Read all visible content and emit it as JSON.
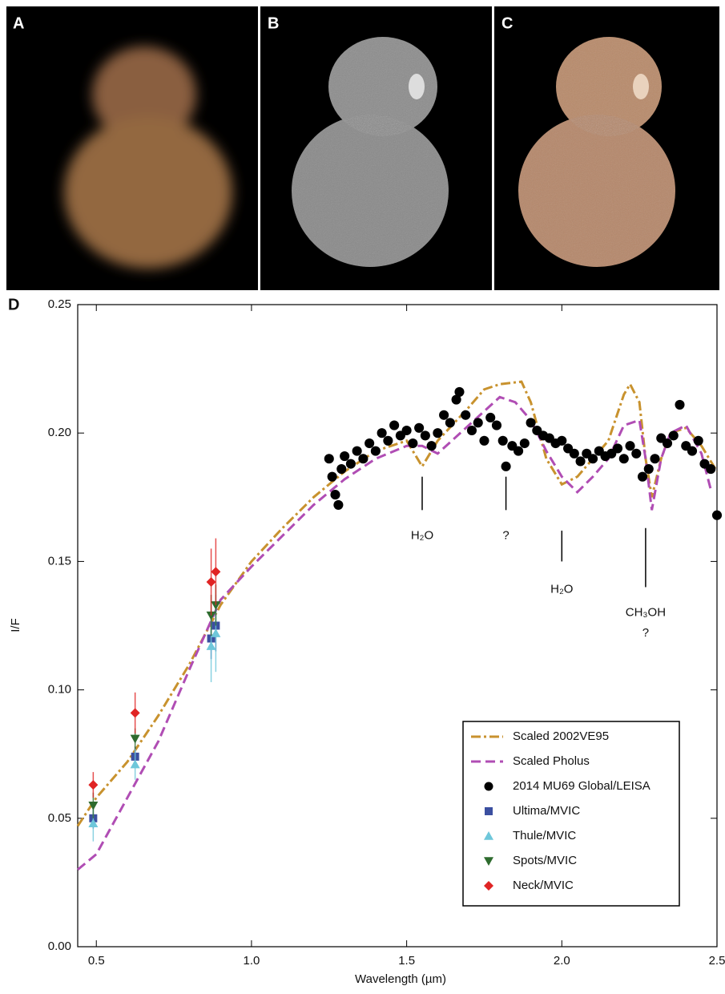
{
  "panels": [
    "A",
    "B",
    "C"
  ],
  "chart_data": {
    "type": "line",
    "label": "D",
    "xlabel": "Wavelength (µm)",
    "ylabel": "I/F",
    "xlim": [
      0.44,
      2.5
    ],
    "ylim": [
      0,
      0.25
    ],
    "xticks": [
      0.5,
      {
        "value": 1,
        "label": "1.0"
      },
      1.5,
      {
        "value": 2,
        "label": "2.0"
      },
      2.5
    ],
    "yticks": [
      {
        "value": 0,
        "label": "0.00"
      },
      0.05,
      {
        "value": 0.1,
        "label": "0.10"
      },
      0.15,
      {
        "value": 0.2,
        "label": "0.20"
      },
      0.25
    ],
    "legend": "lower right",
    "series": [
      {
        "name": "Scaled 2002VE95",
        "type": "line",
        "style": "dashdot",
        "color": "#c8922e",
        "x": [
          0.44,
          0.5,
          0.6,
          0.7,
          0.8,
          0.9,
          1.0,
          1.1,
          1.2,
          1.3,
          1.4,
          1.5,
          1.55,
          1.6,
          1.7,
          1.75,
          1.8,
          1.87,
          1.9,
          1.95,
          2.0,
          2.05,
          2.1,
          2.15,
          2.2,
          2.22,
          2.25,
          2.27,
          2.29,
          2.32,
          2.35,
          2.4,
          2.45,
          2.5
        ],
        "values": [
          0.047,
          0.058,
          0.072,
          0.09,
          0.11,
          0.133,
          0.15,
          0.163,
          0.175,
          0.185,
          0.193,
          0.197,
          0.187,
          0.197,
          0.21,
          0.217,
          0.219,
          0.22,
          0.212,
          0.19,
          0.18,
          0.183,
          0.19,
          0.197,
          0.215,
          0.219,
          0.212,
          0.19,
          0.175,
          0.19,
          0.2,
          0.202,
          0.195,
          0.185
        ]
      },
      {
        "name": "Scaled Pholus",
        "type": "line",
        "style": "dashed",
        "color": "#b04db4",
        "x": [
          0.44,
          0.5,
          0.6,
          0.7,
          0.8,
          0.9,
          1.0,
          1.1,
          1.2,
          1.3,
          1.4,
          1.5,
          1.55,
          1.6,
          1.7,
          1.8,
          1.85,
          1.9,
          1.95,
          2.0,
          2.05,
          2.1,
          2.15,
          2.2,
          2.25,
          2.27,
          2.29,
          2.32,
          2.35,
          2.4,
          2.45,
          2.48
        ],
        "values": [
          0.03,
          0.036,
          0.058,
          0.08,
          0.108,
          0.135,
          0.148,
          0.16,
          0.172,
          0.182,
          0.19,
          0.195,
          0.195,
          0.192,
          0.203,
          0.214,
          0.212,
          0.205,
          0.193,
          0.183,
          0.177,
          0.183,
          0.19,
          0.203,
          0.205,
          0.19,
          0.17,
          0.19,
          0.2,
          0.203,
          0.192,
          0.178
        ]
      },
      {
        "name": "2014 MU69 Global/LEISA",
        "type": "scatter",
        "marker": "circle",
        "color": "#000000",
        "x": [
          1.25,
          1.26,
          1.27,
          1.28,
          1.29,
          1.3,
          1.32,
          1.34,
          1.36,
          1.38,
          1.4,
          1.42,
          1.44,
          1.46,
          1.48,
          1.5,
          1.52,
          1.54,
          1.56,
          1.58,
          1.6,
          1.62,
          1.64,
          1.66,
          1.67,
          1.69,
          1.71,
          1.73,
          1.75,
          1.77,
          1.79,
          1.81,
          1.82,
          1.84,
          1.86,
          1.88,
          1.9,
          1.92,
          1.94,
          1.96,
          1.98,
          2.0,
          2.02,
          2.04,
          2.06,
          2.08,
          2.1,
          2.12,
          2.14,
          2.16,
          2.18,
          2.2,
          2.22,
          2.24,
          2.26,
          2.28,
          2.3,
          2.32,
          2.34,
          2.36,
          2.38,
          2.4,
          2.42,
          2.44,
          2.46,
          2.48,
          2.5
        ],
        "values": [
          0.19,
          0.183,
          0.176,
          0.172,
          0.186,
          0.191,
          0.188,
          0.193,
          0.19,
          0.196,
          0.193,
          0.2,
          0.197,
          0.203,
          0.199,
          0.201,
          0.196,
          0.202,
          0.199,
          0.195,
          0.2,
          0.207,
          0.204,
          0.213,
          0.216,
          0.207,
          0.201,
          0.204,
          0.197,
          0.206,
          0.203,
          0.197,
          0.187,
          0.195,
          0.193,
          0.196,
          0.204,
          0.201,
          0.199,
          0.198,
          0.196,
          0.197,
          0.194,
          0.192,
          0.189,
          0.192,
          0.19,
          0.193,
          0.191,
          0.192,
          0.194,
          0.19,
          0.195,
          0.192,
          0.183,
          0.186,
          0.19,
          0.198,
          0.196,
          0.199,
          0.211,
          0.195,
          0.193,
          0.197,
          0.188,
          0.186,
          0.168
        ]
      },
      {
        "name": "Ultima/MVIC",
        "type": "scatter",
        "marker": "square",
        "color": "#3b4fa0",
        "x": [
          0.49,
          0.625,
          0.87,
          0.885
        ],
        "values": [
          0.05,
          0.074,
          0.12,
          0.125
        ],
        "errors": [
          0.004,
          0.004,
          0.008,
          0.01
        ]
      },
      {
        "name": "Thule/MVIC",
        "type": "scatter",
        "marker": "triangle-up",
        "color": "#6ec7da",
        "x": [
          0.49,
          0.625,
          0.87,
          0.885
        ],
        "values": [
          0.048,
          0.071,
          0.117,
          0.122
        ],
        "errors": [
          0.007,
          0.006,
          0.014,
          0.015
        ]
      },
      {
        "name": "Spots/MVIC",
        "type": "scatter",
        "marker": "triangle-down",
        "color": "#2e6b2e",
        "x": [
          0.49,
          0.625,
          0.87,
          0.885
        ],
        "values": [
          0.055,
          0.081,
          0.129,
          0.133
        ],
        "errors": [
          0.005,
          0.004,
          0.008,
          0.008
        ]
      },
      {
        "name": "Neck/MVIC",
        "type": "scatter",
        "marker": "diamond",
        "color": "#e02424",
        "x": [
          0.49,
          0.625,
          0.87,
          0.885
        ],
        "values": [
          0.063,
          0.091,
          0.142,
          0.146
        ],
        "errors": [
          0.005,
          0.008,
          0.013,
          0.013
        ]
      }
    ],
    "annotations": [
      {
        "text": "H₂O",
        "x": 1.55,
        "y": 0.16,
        "line": [
          0.183,
          0.17
        ]
      },
      {
        "text": "?",
        "x": 1.82,
        "y": 0.16,
        "line": [
          0.183,
          0.17
        ]
      },
      {
        "text": "H₂O",
        "x": 2.0,
        "y": 0.139,
        "line": [
          0.162,
          0.15
        ]
      },
      {
        "text": "CH₃OH",
        "x": 2.27,
        "y": 0.13,
        "line": [
          0.163,
          0.14
        ]
      },
      {
        "text": "?",
        "x": 2.27,
        "y": 0.122
      }
    ]
  }
}
